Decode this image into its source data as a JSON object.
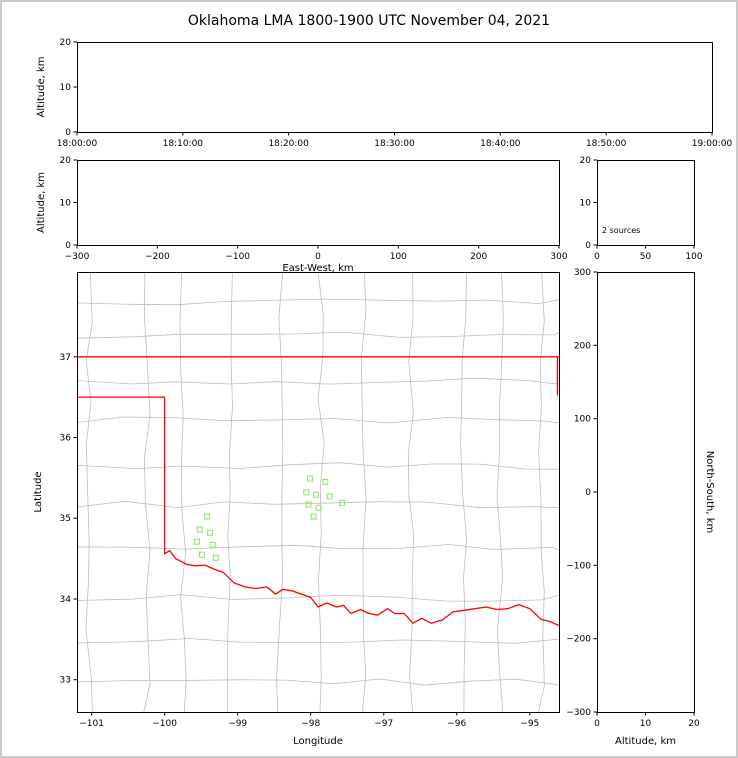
{
  "title": "Oklahoma LMA 1800-1900 UTC November 04, 2021",
  "colors": {
    "axis": "#000000",
    "state_border": "#ff0000",
    "county_lines": "#bdbdbd",
    "marker": "#8fe873",
    "background": "#ffffff",
    "frame": "#c9c9c9"
  },
  "chart_data": [
    {
      "id": "time_height",
      "type": "scatter",
      "xlim": [
        0,
        3600
      ],
      "ylim": [
        0,
        20
      ],
      "xticks": [
        {
          "v": 0,
          "l": "18:00:00"
        },
        {
          "v": 600,
          "l": "18:10:00"
        },
        {
          "v": 1200,
          "l": "18:20:00"
        },
        {
          "v": 1800,
          "l": "18:30:00"
        },
        {
          "v": 2400,
          "l": "18:40:00"
        },
        {
          "v": 3000,
          "l": "18:50:00"
        },
        {
          "v": 3600,
          "l": "19:00:00"
        }
      ],
      "yticks": [
        {
          "v": 0,
          "l": "0"
        },
        {
          "v": 10,
          "l": "10"
        },
        {
          "v": 20,
          "l": "20"
        }
      ],
      "xlabel": "",
      "ylabel": "Altitude, km",
      "points": []
    },
    {
      "id": "ew_height",
      "type": "scatter",
      "xlim": [
        -300,
        300
      ],
      "ylim": [
        0,
        20
      ],
      "xticks": [
        {
          "v": -300,
          "l": "−300"
        },
        {
          "v": -200,
          "l": "−200"
        },
        {
          "v": -100,
          "l": "−100"
        },
        {
          "v": 0,
          "l": "0"
        },
        {
          "v": 100,
          "l": "100"
        },
        {
          "v": 200,
          "l": "200"
        },
        {
          "v": 300,
          "l": "300"
        }
      ],
      "yticks": [
        {
          "v": 0,
          "l": "0"
        },
        {
          "v": 10,
          "l": "10"
        },
        {
          "v": 20,
          "l": "20"
        }
      ],
      "xlabel": "East-West, km",
      "ylabel": "Altitude, km",
      "points": []
    },
    {
      "id": "alt_hist",
      "type": "line",
      "xlim": [
        0,
        100
      ],
      "ylim": [
        0,
        20
      ],
      "xticks": [
        {
          "v": 0,
          "l": "0"
        },
        {
          "v": 50,
          "l": "50"
        },
        {
          "v": 100,
          "l": "100"
        }
      ],
      "yticks": [
        {
          "v": 0,
          "l": "0"
        },
        {
          "v": 10,
          "l": "10"
        },
        {
          "v": 20,
          "l": "20"
        }
      ],
      "xlabel": "",
      "ylabel": "",
      "annotation": "2 sources",
      "points": []
    },
    {
      "id": "plan_view",
      "type": "scatter",
      "xlim": [
        -101.2,
        -94.6
      ],
      "ylim": [
        32.6,
        38.05
      ],
      "xticks": [
        {
          "v": -101,
          "l": "−101"
        },
        {
          "v": -100,
          "l": "−100"
        },
        {
          "v": -99,
          "l": "−99"
        },
        {
          "v": -98,
          "l": "−98"
        },
        {
          "v": -97,
          "l": "−97"
        },
        {
          "v": -96,
          "l": "−96"
        },
        {
          "v": -95,
          "l": "−95"
        }
      ],
      "yticks": [
        {
          "v": 33,
          "l": "33"
        },
        {
          "v": 34,
          "l": "34"
        },
        {
          "v": 35,
          "l": "35"
        },
        {
          "v": 36,
          "l": "36"
        },
        {
          "v": 37,
          "l": "37"
        }
      ],
      "xlabel": "Longitude",
      "ylabel": "Latitude",
      "points": [
        [
          -99.42,
          35.02
        ],
        [
          -99.52,
          34.86
        ],
        [
          -99.38,
          34.82
        ],
        [
          -99.56,
          34.71
        ],
        [
          -99.34,
          34.67
        ],
        [
          -99.49,
          34.55
        ],
        [
          -99.3,
          34.51
        ],
        [
          -98.01,
          35.49
        ],
        [
          -97.8,
          35.45
        ],
        [
          -98.06,
          35.32
        ],
        [
          -97.93,
          35.29
        ],
        [
          -97.74,
          35.27
        ],
        [
          -98.03,
          35.17
        ],
        [
          -97.89,
          35.13
        ],
        [
          -97.57,
          35.19
        ],
        [
          -97.96,
          35.02
        ]
      ],
      "state_border": [
        [
          [
            -101.2,
            37.0
          ],
          [
            -94.6,
            37.0
          ]
        ],
        [
          [
            -94.62,
            37.0
          ],
          [
            -94.62,
            36.52
          ]
        ],
        [
          [
            -101.2,
            36.5
          ],
          [
            -100.0,
            36.5
          ],
          [
            -100.0,
            34.56
          ],
          [
            -99.93,
            34.6
          ],
          [
            -99.85,
            34.5
          ],
          [
            -99.7,
            34.43
          ],
          [
            -99.58,
            34.41
          ],
          [
            -99.45,
            34.42
          ],
          [
            -99.3,
            34.36
          ],
          [
            -99.2,
            34.33
          ],
          [
            -99.05,
            34.2
          ],
          [
            -98.9,
            34.15
          ],
          [
            -98.75,
            34.13
          ],
          [
            -98.6,
            34.15
          ],
          [
            -98.48,
            34.06
          ],
          [
            -98.38,
            34.12
          ],
          [
            -98.25,
            34.1
          ],
          [
            -98.1,
            34.05
          ],
          [
            -98.0,
            34.02
          ],
          [
            -97.9,
            33.9
          ],
          [
            -97.78,
            33.95
          ],
          [
            -97.65,
            33.9
          ],
          [
            -97.55,
            33.92
          ],
          [
            -97.45,
            33.82
          ],
          [
            -97.32,
            33.87
          ],
          [
            -97.2,
            33.82
          ],
          [
            -97.08,
            33.8
          ],
          [
            -96.95,
            33.88
          ],
          [
            -96.85,
            33.82
          ],
          [
            -96.72,
            33.82
          ],
          [
            -96.6,
            33.7
          ],
          [
            -96.48,
            33.76
          ],
          [
            -96.35,
            33.7
          ],
          [
            -96.2,
            33.74
          ],
          [
            -96.05,
            33.84
          ],
          [
            -95.9,
            33.86
          ],
          [
            -95.75,
            33.88
          ],
          [
            -95.6,
            33.9
          ],
          [
            -95.45,
            33.87
          ],
          [
            -95.3,
            33.88
          ],
          [
            -95.15,
            33.93
          ],
          [
            -95.0,
            33.88
          ],
          [
            -94.85,
            33.75
          ],
          [
            -94.72,
            33.72
          ],
          [
            -94.6,
            33.67
          ]
        ]
      ]
    },
    {
      "id": "ns_height",
      "type": "scatter",
      "xlim": [
        0,
        20
      ],
      "ylim": [
        -300,
        300
      ],
      "xticks": [
        {
          "v": 0,
          "l": "0"
        },
        {
          "v": 10,
          "l": "10"
        },
        {
          "v": 20,
          "l": "20"
        }
      ],
      "yticks": [
        {
          "v": 300,
          "l": "300"
        },
        {
          "v": 200,
          "l": "200"
        },
        {
          "v": 100,
          "l": "100"
        },
        {
          "v": 0,
          "l": "0"
        },
        {
          "v": -100,
          "l": "−100"
        },
        {
          "v": -200,
          "l": "−200"
        },
        {
          "v": -300,
          "l": "−300"
        }
      ],
      "xlabel": "Altitude, km",
      "ylabel": "North-South, km",
      "ylabel_position": "right",
      "points": []
    }
  ]
}
